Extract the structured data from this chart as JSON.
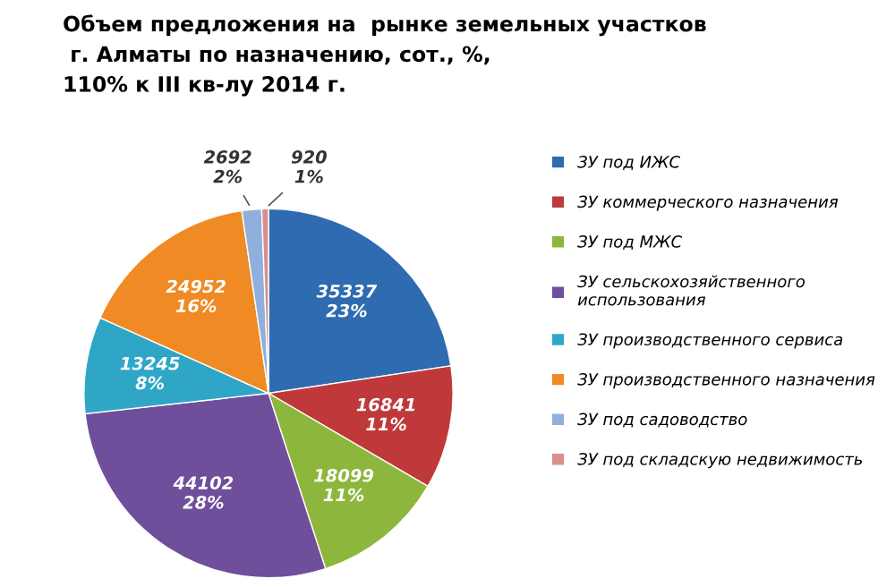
{
  "chart_data": {
    "type": "pie",
    "title": "Объем предложения на  рынке земельных участков\n г. Алматы по назначению, сот., %,\n110% к III кв-лу 2014 г.",
    "categories": [
      "ЗУ под ИЖС",
      "ЗУ коммерческого назначения",
      "ЗУ под МЖС",
      "ЗУ сельскохозяйственного\nиспользования",
      "ЗУ производственного сервиса",
      "ЗУ производственного назначения",
      "ЗУ под садоводство",
      "ЗУ под складскую недвижимость"
    ],
    "values": [
      35337,
      16841,
      18099,
      44102,
      13245,
      24952,
      2692,
      920
    ],
    "value_labels": [
      "35337\n23%",
      "16841\n11%",
      "18099\n11%",
      "44102\n28%",
      "13245\n8%",
      "24952\n16%",
      "2692\n2%",
      "920\n1%"
    ],
    "colors": [
      "#2e6bb0",
      "#c0393a",
      "#8db63c",
      "#6f4e9c",
      "#2fa6c6",
      "#ef8a24",
      "#8fb0dc",
      "#d98e8e"
    ],
    "legend": "right"
  }
}
